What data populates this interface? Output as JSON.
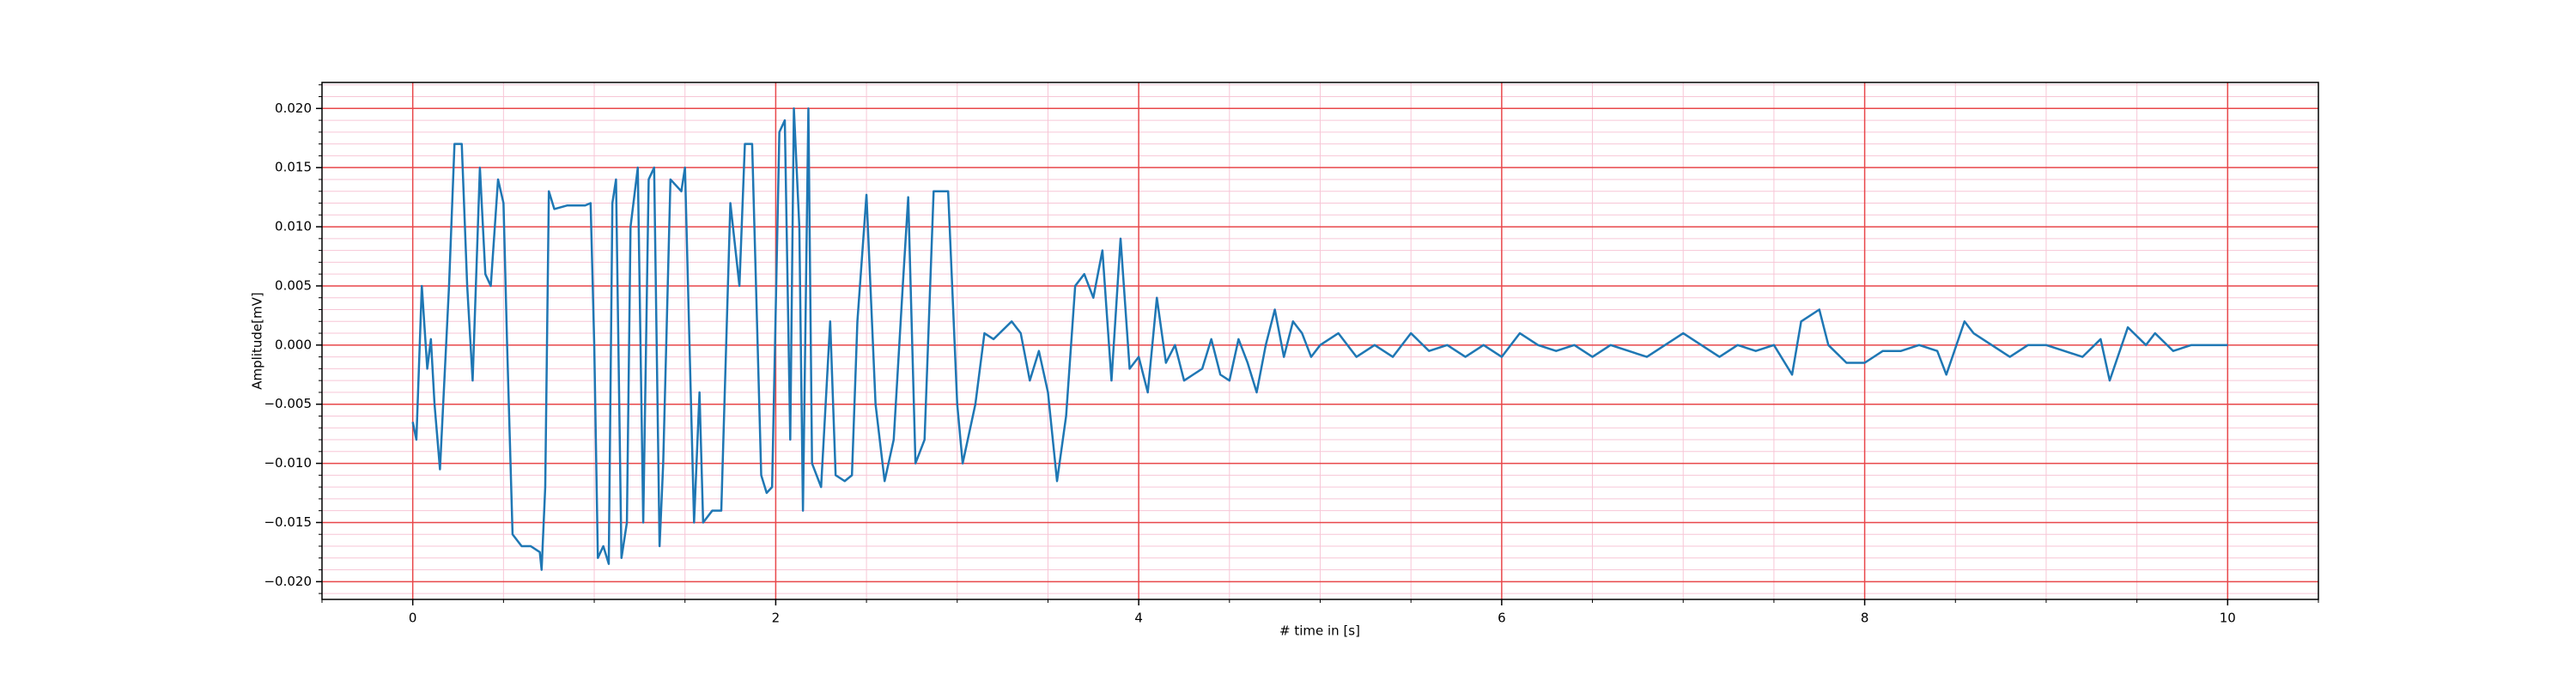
{
  "chart_data": {
    "type": "line",
    "xlabel": "# time in [s]",
    "ylabel": "Amplitude[mV]",
    "xlim": [
      -0.5,
      10.5
    ],
    "ylim": [
      -0.0215,
      0.0222
    ],
    "xticks": [
      0,
      2,
      4,
      6,
      8,
      10
    ],
    "yticks": [
      {
        "value": -0.02,
        "label": "−0.020"
      },
      {
        "value": -0.015,
        "label": "−0.015"
      },
      {
        "value": -0.01,
        "label": "−0.010"
      },
      {
        "value": -0.005,
        "label": "−0.005"
      },
      {
        "value": 0,
        "label": "0.000"
      },
      {
        "value": 0.005,
        "label": "0.005"
      },
      {
        "value": 0.01,
        "label": "0.010"
      },
      {
        "value": 0.015,
        "label": "0.015"
      },
      {
        "value": 0.02,
        "label": "0.020"
      }
    ],
    "xminorticks": [
      -0.5,
      0.5,
      1,
      1.5,
      2.5,
      3,
      3.5,
      4.5,
      5,
      5.5,
      6.5,
      7,
      7.5,
      8.5,
      9,
      9.5,
      10.5
    ],
    "yminorticks": [
      -0.021,
      -0.019,
      -0.018,
      -0.017,
      -0.016,
      -0.014,
      -0.013,
      -0.012,
      -0.011,
      -0.009,
      -0.008,
      -0.007,
      -0.006,
      -0.004,
      -0.003,
      -0.002,
      -0.001,
      0.001,
      0.002,
      0.003,
      0.004,
      0.006,
      0.007,
      0.008,
      0.009,
      0.011,
      0.012,
      0.013,
      0.014,
      0.016,
      0.017,
      0.018,
      0.019,
      0.021,
      0.022
    ],
    "grid": true,
    "grid_color": "#e8474a",
    "minor_grid_color": "#f7c6d6",
    "x": [
      0,
      0.02,
      0.05,
      0.08,
      0.1,
      0.12,
      0.15,
      0.2,
      0.23,
      0.27,
      0.3,
      0.33,
      0.37,
      0.4,
      0.43,
      0.47,
      0.5,
      0.52,
      0.55,
      0.6,
      0.65,
      0.7,
      0.71,
      0.73,
      0.75,
      0.78,
      0.85,
      0.9,
      0.95,
      0.98,
      1.0,
      1.02,
      1.05,
      1.08,
      1.1,
      1.12,
      1.15,
      1.18,
      1.2,
      1.24,
      1.27,
      1.3,
      1.33,
      1.36,
      1.38,
      1.42,
      1.48,
      1.5,
      1.53,
      1.55,
      1.58,
      1.6,
      1.65,
      1.7,
      1.75,
      1.8,
      1.83,
      1.87,
      1.92,
      1.95,
      1.98,
      2.02,
      2.05,
      2.08,
      2.1,
      2.13,
      2.15,
      2.18,
      2.2,
      2.25,
      2.3,
      2.33,
      2.38,
      2.42,
      2.45,
      2.5,
      2.55,
      2.6,
      2.65,
      2.7,
      2.73,
      2.77,
      2.82,
      2.87,
      2.95,
      3.0,
      3.03,
      3.1,
      3.15,
      3.2,
      3.3,
      3.35,
      3.4,
      3.45,
      3.5,
      3.55,
      3.6,
      3.65,
      3.7,
      3.75,
      3.8,
      3.85,
      3.9,
      3.95,
      4.0,
      4.05,
      4.1,
      4.15,
      4.2,
      4.25,
      4.3,
      4.35,
      4.4,
      4.45,
      4.5,
      4.55,
      4.6,
      4.65,
      4.7,
      4.75,
      4.8,
      4.85,
      4.9,
      4.95,
      5.0,
      5.1,
      5.2,
      5.3,
      5.4,
      5.5,
      5.6,
      5.7,
      5.8,
      5.9,
      6.0,
      6.1,
      6.2,
      6.3,
      6.4,
      6.5,
      6.6,
      6.7,
      6.8,
      6.9,
      7.0,
      7.1,
      7.2,
      7.3,
      7.4,
      7.5,
      7.6,
      7.65,
      7.75,
      7.8,
      7.9,
      8.0,
      8.1,
      8.2,
      8.3,
      8.4,
      8.45,
      8.55,
      8.6,
      8.7,
      8.8,
      8.9,
      9.0,
      9.1,
      9.2,
      9.3,
      9.35,
      9.45,
      9.55,
      9.6,
      9.7,
      9.8,
      9.9,
      10.0
    ],
    "series": [
      {
        "color": "#1f77b4",
        "values": [
          -0.0065,
          -0.008,
          0.005,
          -0.002,
          0.0005,
          -0.005,
          -0.0105,
          0.005,
          0.017,
          0.017,
          0.005,
          -0.003,
          0.015,
          0.006,
          0.005,
          0.014,
          0.012,
          0.0,
          -0.016,
          -0.017,
          -0.017,
          -0.0175,
          -0.019,
          -0.012,
          0.013,
          0.0115,
          0.0118,
          0.0118,
          0.0118,
          0.012,
          0.0,
          -0.018,
          -0.017,
          -0.0185,
          0.012,
          0.014,
          -0.018,
          -0.015,
          0.01,
          0.015,
          -0.015,
          0.014,
          0.015,
          -0.017,
          -0.01,
          0.014,
          0.013,
          0.015,
          -0.003,
          -0.015,
          -0.004,
          -0.015,
          -0.014,
          -0.014,
          0.012,
          0.005,
          0.017,
          0.017,
          -0.011,
          -0.0125,
          -0.012,
          0.018,
          0.019,
          -0.008,
          0.02,
          0.01,
          -0.014,
          0.02,
          -0.01,
          -0.012,
          0.002,
          -0.011,
          -0.0115,
          -0.011,
          0.002,
          0.0127,
          -0.005,
          -0.0115,
          -0.008,
          0.005,
          0.0125,
          -0.01,
          -0.008,
          0.013,
          0.013,
          -0.005,
          -0.01,
          -0.005,
          0.001,
          0.0005,
          0.002,
          0.001,
          -0.003,
          -0.0005,
          -0.004,
          -0.0115,
          -0.006,
          0.005,
          0.006,
          0.004,
          0.008,
          -0.003,
          0.009,
          -0.002,
          -0.001,
          -0.004,
          0.004,
          -0.0015,
          0.0,
          -0.003,
          -0.0025,
          -0.002,
          0.0005,
          -0.0025,
          -0.003,
          0.0005,
          -0.0015,
          -0.004,
          0.0,
          0.003,
          -0.001,
          0.002,
          0.001,
          -0.001,
          0.0,
          0.001,
          -0.001,
          0.0,
          -0.001,
          0.001,
          -0.0005,
          0.0,
          -0.001,
          0.0,
          -0.001,
          0.001,
          0.0,
          -0.0005,
          0.0,
          -0.001,
          0.0,
          -0.0005,
          -0.001,
          0.0,
          0.001,
          0.0,
          -0.001,
          0.0,
          -0.0005,
          0.0,
          -0.0025,
          0.002,
          0.003,
          0.0,
          -0.0015,
          -0.0015,
          -0.0005,
          -0.0005,
          0.0,
          -0.0005,
          -0.0025,
          0.002,
          0.001,
          0.0,
          -0.001,
          0.0,
          0.0,
          -0.0005,
          -0.001,
          0.0005,
          -0.003,
          0.0015,
          0.0,
          0.001,
          -0.0005,
          0.0,
          0.0,
          0.0
        ]
      }
    ]
  }
}
